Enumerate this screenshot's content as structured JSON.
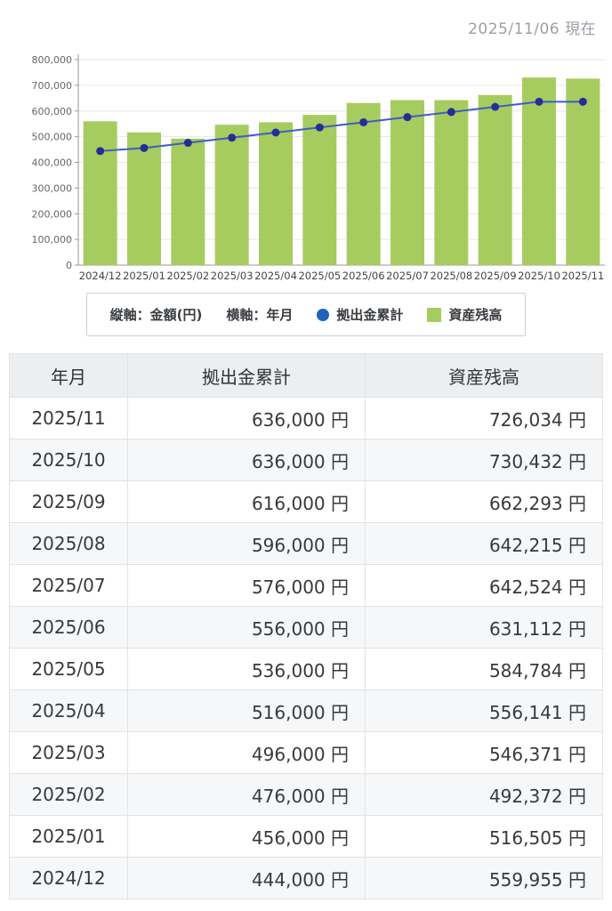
{
  "header": {
    "as_of_date": "2025/11/06 現在"
  },
  "chart_data": {
    "type": "bar",
    "categories": [
      "2024/12",
      "2025/01",
      "2025/02",
      "2025/03",
      "2025/04",
      "2025/05",
      "2025/06",
      "2025/07",
      "2025/08",
      "2025/09",
      "2025/10",
      "2025/11"
    ],
    "series": [
      {
        "name": "資産残高",
        "type": "bar",
        "color": "#a6cc5f",
        "values": [
          559955,
          516505,
          492372,
          546371,
          556141,
          584784,
          631112,
          642524,
          642215,
          662293,
          730432,
          726034
        ]
      },
      {
        "name": "拠出金累計",
        "type": "line",
        "color": "#3e5ec5",
        "marker_color": "#282c96",
        "values": [
          444000,
          456000,
          476000,
          496000,
          516000,
          536000,
          556000,
          576000,
          596000,
          616000,
          636000,
          636000
        ]
      }
    ],
    "title": "",
    "xlabel": "年月",
    "ylabel": "金額(円)",
    "ylim": [
      0,
      800000
    ],
    "ytick_interval": 100000,
    "ytick_labels": [
      "0",
      "100,000",
      "200,000",
      "300,000",
      "400,000",
      "500,000",
      "600,000",
      "700,000",
      "800,000"
    ],
    "grid": true,
    "legend_position": "bottom"
  },
  "legend": {
    "y_axis_label": "縦軸：金額(円)",
    "x_axis_label": "横軸：年月",
    "line_series_label": "拠出金累計",
    "bar_series_label": "資産残高",
    "line_marker_color": "#1f63bb",
    "bar_swatch_color": "#a6cc5f"
  },
  "table": {
    "columns": [
      "年月",
      "拠出金累計",
      "資産残高"
    ],
    "rows": [
      {
        "month": "2025/11",
        "contribution": "636,000 円",
        "balance": "726,034 円"
      },
      {
        "month": "2025/10",
        "contribution": "636,000 円",
        "balance": "730,432 円"
      },
      {
        "month": "2025/09",
        "contribution": "616,000 円",
        "balance": "662,293 円"
      },
      {
        "month": "2025/08",
        "contribution": "596,000 円",
        "balance": "642,215 円"
      },
      {
        "month": "2025/07",
        "contribution": "576,000 円",
        "balance": "642,524 円"
      },
      {
        "month": "2025/06",
        "contribution": "556,000 円",
        "balance": "631,112 円"
      },
      {
        "month": "2025/05",
        "contribution": "536,000 円",
        "balance": "584,784 円"
      },
      {
        "month": "2025/04",
        "contribution": "516,000 円",
        "balance": "556,141 円"
      },
      {
        "month": "2025/03",
        "contribution": "496,000 円",
        "balance": "546,371 円"
      },
      {
        "month": "2025/02",
        "contribution": "476,000 円",
        "balance": "492,372 円"
      },
      {
        "month": "2025/01",
        "contribution": "456,000 円",
        "balance": "516,505 円"
      },
      {
        "month": "2024/12",
        "contribution": "444,000 円",
        "balance": "559,955 円"
      }
    ]
  }
}
